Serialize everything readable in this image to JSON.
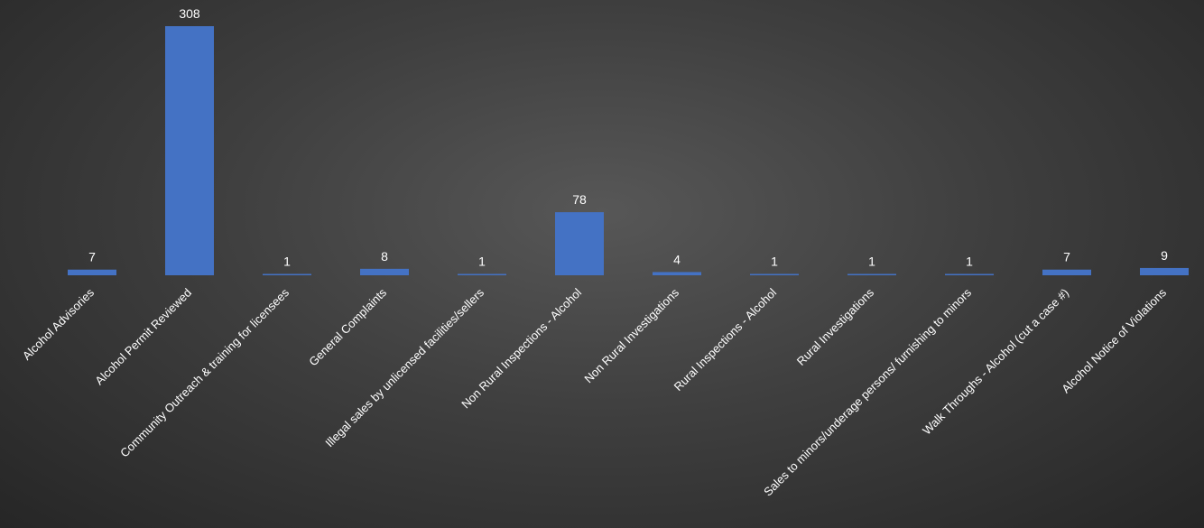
{
  "colors": {
    "bar": "#4472c4",
    "text": "#ffffff",
    "background": "#3f3f3f"
  },
  "chart_data": {
    "type": "bar",
    "title": "",
    "xlabel": "",
    "ylabel": "",
    "ylim": [
      0,
      308
    ],
    "grid": false,
    "legend": "none",
    "categories": [
      "Alcohol Advisories",
      "Alcohol Permit Reviewed",
      "Community Outreach & training for licensees",
      "General Complaints",
      "Illegal sales by unlicensed facilities/sellers",
      "Non Rural Inspections - Alcohol",
      "Non Rural Investigations",
      "Rural Inspections - Alcohol",
      "Rural Investigations",
      "Sales to minors/underage persons/ furnishing to minors",
      "Walk Throughs - Alcohol (cut a case #)",
      "Alcohol Notice of Violations"
    ],
    "values": [
      7,
      308,
      1,
      8,
      1,
      78,
      4,
      1,
      1,
      1,
      7,
      9
    ]
  }
}
